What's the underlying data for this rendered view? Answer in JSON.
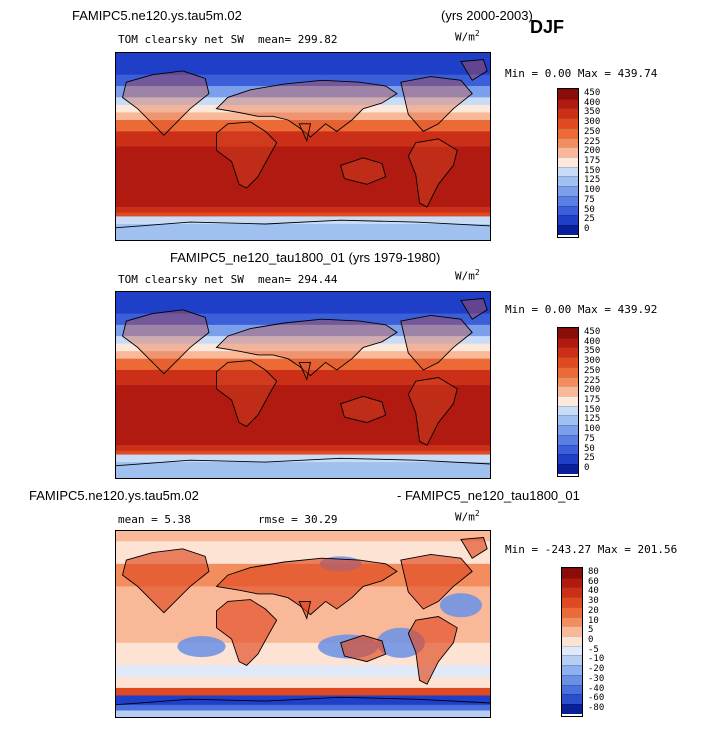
{
  "season": "DJF",
  "panels": [
    {
      "header_left": "FAMIPC5.ne120.ys.tau5m.02",
      "header_right": "(yrs 2000-2003)",
      "field": "TOM clearsky net SW",
      "stat_text": "mean= 299.82",
      "units_base": "W/m",
      "units_exp": "2",
      "minmax": "Min =   0.00 Max = 439.74",
      "colorbar_labels": [
        "450",
        "400",
        "350",
        "300",
        "250",
        "225",
        "200",
        "175",
        "150",
        "125",
        "100",
        "75",
        "50",
        "25",
        "0"
      ],
      "colorbar_colors": [
        "#8a0d08",
        "#b01a10",
        "#cc2f17",
        "#e04a22",
        "#ec6a36",
        "#f48d5e",
        "#f9b897",
        "#fde8dc",
        "#c9dcf7",
        "#a0c0f0",
        "#7b9feb",
        "#5a7fe3",
        "#3b5fd9",
        "#1f3fc8",
        "#0a1f9a"
      ]
    },
    {
      "header_left": "FAMIPC5_ne120_tau1800_01 (yrs 1979-1980)",
      "header_right": "",
      "field": "TOM clearsky net SW",
      "stat_text": "mean= 294.44",
      "units_base": "W/m",
      "units_exp": "2",
      "minmax": "Min =   0.00 Max = 439.92",
      "colorbar_labels": [
        "450",
        "400",
        "350",
        "300",
        "250",
        "225",
        "200",
        "175",
        "150",
        "125",
        "100",
        "75",
        "50",
        "25",
        "0"
      ],
      "colorbar_colors": [
        "#8a0d08",
        "#b01a10",
        "#cc2f17",
        "#e04a22",
        "#ec6a36",
        "#f48d5e",
        "#f9b897",
        "#fde8dc",
        "#c9dcf7",
        "#a0c0f0",
        "#7b9feb",
        "#5a7fe3",
        "#3b5fd9",
        "#1f3fc8",
        "#0a1f9a"
      ]
    },
    {
      "header_left": "FAMIPC5.ne120.ys.tau5m.02",
      "header_right": "- FAMIPC5_ne120_tau1800_01",
      "field": "",
      "stat_text": "mean =   5.38",
      "rmse_text": "rmse =  30.29",
      "units_base": "W/m",
      "units_exp": "2",
      "minmax": "Min = -243.27 Max = 201.56",
      "colorbar_labels": [
        "80",
        "60",
        "40",
        "30",
        "20",
        "10",
        "5",
        "0",
        "-5",
        "-10",
        "-20",
        "-30",
        "-40",
        "-60",
        "-80"
      ],
      "colorbar_colors": [
        "#8a0d08",
        "#b01a10",
        "#cc2f17",
        "#e04a22",
        "#ec6a36",
        "#f48d5e",
        "#f9b897",
        "#fde3d4",
        "#dfe9f9",
        "#b7cdf4",
        "#8fb0ee",
        "#6a90e6",
        "#4a70dc",
        "#2a4fcc",
        "#0a1f9a"
      ]
    }
  ],
  "chart_data": [
    {
      "type": "heatmap",
      "title": "FAMIPC5.ne120.ys.tau5m.02 (yrs 2000-2003)",
      "subtitle": "TOM clearsky net SW",
      "season": "DJF",
      "units": "W/m2",
      "mean": 299.82,
      "min": 0.0,
      "max": 439.74,
      "levels": [
        0,
        25,
        50,
        75,
        100,
        125,
        150,
        175,
        200,
        225,
        250,
        300,
        350,
        400,
        450
      ]
    },
    {
      "type": "heatmap",
      "title": "FAMIPC5_ne120_tau1800_01 (yrs 1979-1980)",
      "subtitle": "TOM clearsky net SW",
      "units": "W/m2",
      "mean": 294.44,
      "min": 0.0,
      "max": 439.92,
      "levels": [
        0,
        25,
        50,
        75,
        100,
        125,
        150,
        175,
        200,
        225,
        250,
        300,
        350,
        400,
        450
      ]
    },
    {
      "type": "heatmap",
      "title": "FAMIPC5.ne120.ys.tau5m.02 - FAMIPC5_ne120_tau1800_01",
      "units": "W/m2",
      "mean": 5.38,
      "rmse": 30.29,
      "min": -243.27,
      "max": 201.56,
      "levels": [
        -80,
        -60,
        -40,
        -30,
        -20,
        -10,
        -5,
        0,
        5,
        10,
        20,
        30,
        40,
        60,
        80
      ]
    }
  ]
}
